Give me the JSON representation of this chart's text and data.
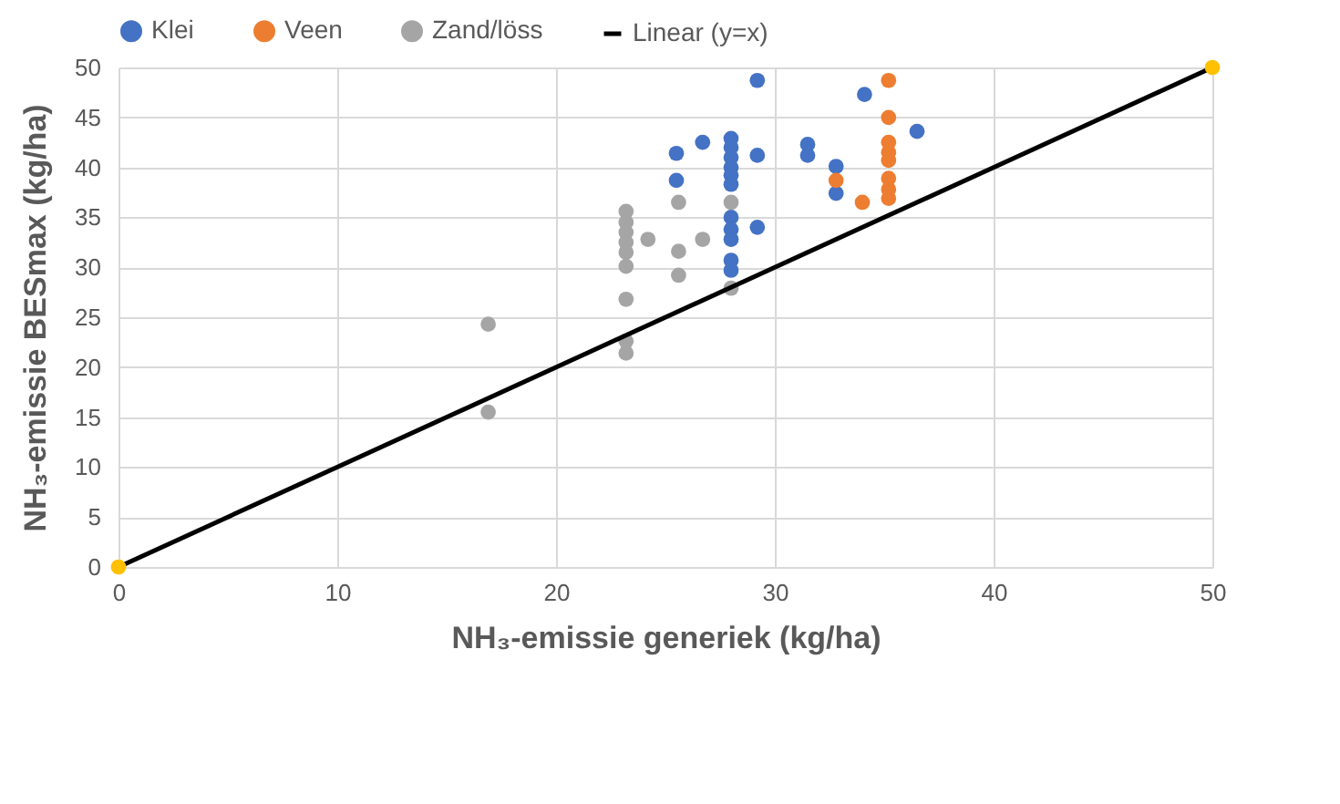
{
  "chart_data": {
    "type": "scatter",
    "xlabel": "NH₃-emissie generiek (kg/ha)",
    "ylabel": "NH₃-emissie BESmax  (kg/ha)",
    "xlim": [
      0,
      50
    ],
    "ylim": [
      0,
      50
    ],
    "xticks": [
      0,
      10,
      20,
      30,
      40,
      50
    ],
    "yticks": [
      0,
      5,
      10,
      15,
      20,
      25,
      30,
      35,
      40,
      45,
      50
    ],
    "grid": true,
    "legend": "top",
    "marker": "circle",
    "series": [
      {
        "name": "Klei",
        "color": "#4472c4",
        "x": [
          25.5,
          25.5,
          26.7,
          28,
          28,
          28,
          28,
          28,
          28,
          28,
          28,
          28,
          28,
          28,
          29.2,
          29.2,
          29.2,
          31.5,
          31.5,
          32.8,
          32.8,
          34.1,
          36.5
        ],
        "values": [
          41.4,
          38.7,
          42.5,
          42.9,
          42,
          41,
          40,
          39.2,
          38.3,
          35,
          33.8,
          32.8,
          30.7,
          29.7,
          48.7,
          41.2,
          34,
          42.3,
          41.2,
          40.1,
          37.4,
          47.3,
          43.6
        ]
      },
      {
        "name": "Veen",
        "color": "#ed7d31",
        "x": [
          35.2,
          35.2,
          35.2,
          35.2,
          35.2,
          35.2,
          35.2,
          35.2,
          34,
          32.8
        ],
        "values": [
          48.7,
          45,
          42.5,
          41.5,
          40.7,
          38.9,
          37.8,
          36.9,
          36.5,
          38.7
        ]
      },
      {
        "name": "Zand/löss",
        "color": "#a5a5a5",
        "x": [
          16.9,
          16.9,
          23.2,
          23.2,
          23.2,
          23.2,
          23.2,
          23.2,
          23.2,
          23.2,
          23.2,
          24.2,
          25.6,
          25.6,
          25.6,
          26.7,
          28,
          28
        ],
        "values": [
          24.3,
          15.5,
          35.6,
          34.5,
          33.5,
          32.5,
          31.5,
          30.1,
          26.8,
          22.6,
          21.4,
          32.8,
          36.5,
          31.6,
          29.2,
          32.8,
          36.5,
          27.9
        ]
      },
      {
        "name": "Linear (y=x)",
        "type": "line",
        "marker": "none",
        "line_style": "solid",
        "color": "#000000",
        "x": [
          0,
          50
        ],
        "values": [
          0,
          50
        ]
      },
      {
        "type": "scatter",
        "color": "#ffc000",
        "x": [
          0,
          50
        ],
        "values": [
          0,
          50
        ]
      }
    ]
  }
}
